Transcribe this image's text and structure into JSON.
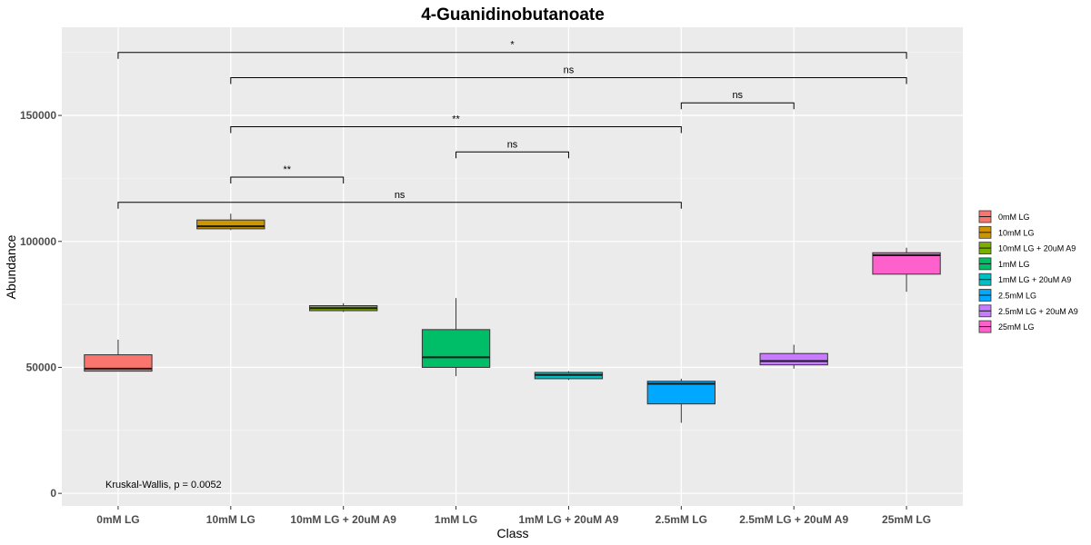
{
  "chart_data": {
    "type": "box",
    "title": "4-Guanidinobutanoate",
    "xlabel": "Class",
    "ylabel": "Abundance",
    "ylim": [
      -5000,
      185000
    ],
    "yticks": [
      0,
      50000,
      100000,
      150000
    ],
    "ytick_labels": [
      "0",
      "50000",
      "100000",
      "150000"
    ],
    "grid": true,
    "legend_position": "right",
    "categories": [
      "0mM LG",
      "10mM LG",
      "10mM LG + 20uM A9",
      "1mM LG",
      "1mM LG + 20uM A9",
      "2.5mM LG",
      "2.5mM LG + 20uM A9",
      "25mM LG"
    ],
    "series": [
      {
        "name": "0mM LG",
        "color": "#F8766D",
        "min": 48500,
        "q1": 48500,
        "median": 49500,
        "q3": 55000,
        "max": 61000
      },
      {
        "name": "10mM LG",
        "color": "#CD9600",
        "min": 104500,
        "q1": 105000,
        "median": 106000,
        "q3": 108500,
        "max": 111000
      },
      {
        "name": "10mM LG + 20uM A9",
        "color": "#7CAE00",
        "min": 72000,
        "q1": 72500,
        "median": 73500,
        "q3": 74500,
        "max": 75500
      },
      {
        "name": "1mM LG",
        "color": "#00BE67",
        "min": 46500,
        "q1": 50000,
        "median": 54000,
        "q3": 65000,
        "max": 77500
      },
      {
        "name": "1mM LG + 20uM A9",
        "color": "#00BFC4",
        "min": 45000,
        "q1": 45500,
        "median": 47000,
        "q3": 48000,
        "max": 48500
      },
      {
        "name": "2.5mM LG",
        "color": "#00A9FF",
        "min": 28000,
        "q1": 35500,
        "median": 43500,
        "q3": 44500,
        "max": 45500
      },
      {
        "name": "2.5mM LG + 20uM A9",
        "color": "#C77CFF",
        "min": 49500,
        "q1": 51000,
        "median": 52500,
        "q3": 55500,
        "max": 59000
      },
      {
        "name": "25mM LG",
        "color": "#FF61CC",
        "min": 80000,
        "q1": 87000,
        "median": 94500,
        "q3": 95500,
        "max": 97500
      }
    ],
    "comparisons": [
      {
        "from": 0,
        "to": 7,
        "y": 175000,
        "label": "*"
      },
      {
        "from": 1,
        "to": 7,
        "y": 165000,
        "label": "ns"
      },
      {
        "from": 5,
        "to": 6,
        "y": 155000,
        "label": "ns"
      },
      {
        "from": 1,
        "to": 5,
        "y": 145500,
        "label": "**"
      },
      {
        "from": 3,
        "to": 4,
        "y": 135500,
        "label": "ns"
      },
      {
        "from": 1,
        "to": 2,
        "y": 125500,
        "label": "**"
      },
      {
        "from": 0,
        "to": 5,
        "y": 115500,
        "label": "ns"
      }
    ],
    "annotation": "Kruskal-Wallis, p = 0.0052"
  }
}
